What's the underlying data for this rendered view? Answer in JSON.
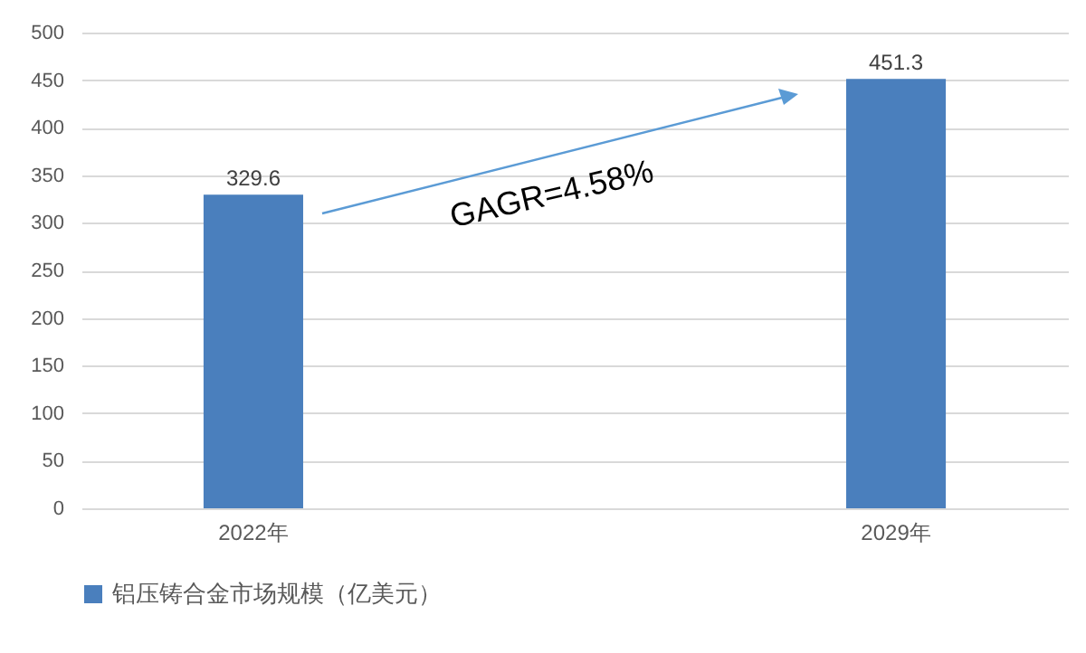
{
  "chart_data": {
    "type": "bar",
    "categories": [
      "2022年",
      "2029年"
    ],
    "series": [
      {
        "name": "铝压铸合金市场规模（亿美元）",
        "color": "#4a7fbd",
        "values": [
          329.6,
          451.3
        ]
      }
    ],
    "ylim": [
      0,
      500
    ],
    "yticks": [
      0,
      50,
      100,
      150,
      200,
      250,
      300,
      350,
      400,
      450,
      500
    ],
    "grid": "y",
    "legend": "bottom",
    "data_labels": true,
    "annotations": [
      "GAGR=4.58%"
    ]
  }
}
